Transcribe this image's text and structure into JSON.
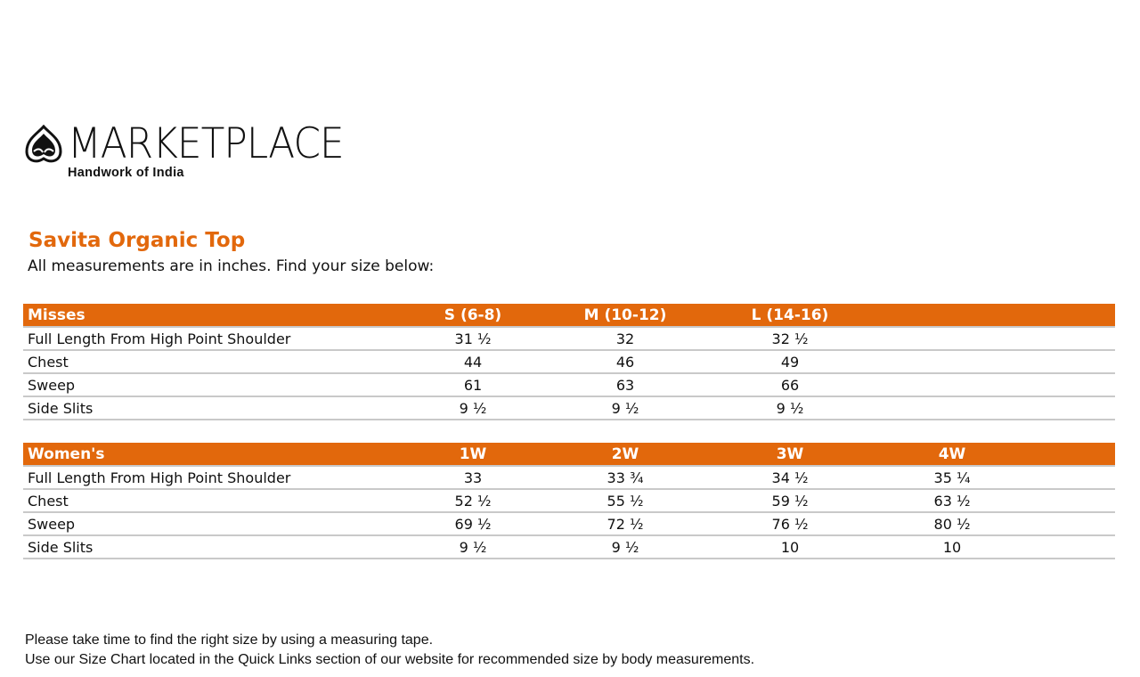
{
  "logo": {
    "brand": "MARKETPLACE",
    "tagline": "Handwork of India"
  },
  "title": "Savita Organic Top",
  "subtitle": "All measurements are in inches. Find your size below:",
  "accent_color": "#E2680C",
  "tables": [
    {
      "header": [
        "Misses",
        "S (6-8)",
        "M (10-12)",
        "L (14-16)",
        ""
      ],
      "rows": [
        [
          "Full Length From High Point Shoulder",
          "31 ½",
          "32",
          "32 ½",
          ""
        ],
        [
          "Chest",
          "44",
          "46",
          "49",
          ""
        ],
        [
          "Sweep",
          "61",
          "63",
          "66",
          ""
        ],
        [
          "Side Slits",
          "9 ½",
          "9 ½",
          "9 ½",
          ""
        ]
      ]
    },
    {
      "header": [
        "Women's",
        "1W",
        "2W",
        "3W",
        "4W"
      ],
      "rows": [
        [
          "Full Length From High Point Shoulder",
          "33",
          "33 ¾",
          "34 ½",
          "35 ¼"
        ],
        [
          "Chest",
          "52 ½",
          "55 ½",
          "59 ½",
          "63 ½"
        ],
        [
          "Sweep",
          "69 ½",
          "72 ½",
          "76 ½",
          "80 ½"
        ],
        [
          "Side Slits",
          "9 ½",
          "9 ½",
          "10",
          "10"
        ]
      ]
    }
  ],
  "footer": [
    "Please take time to find the right size by using a measuring tape.",
    "Use our Size Chart located in the Quick Links section of our website for recommended size by body measurements."
  ]
}
